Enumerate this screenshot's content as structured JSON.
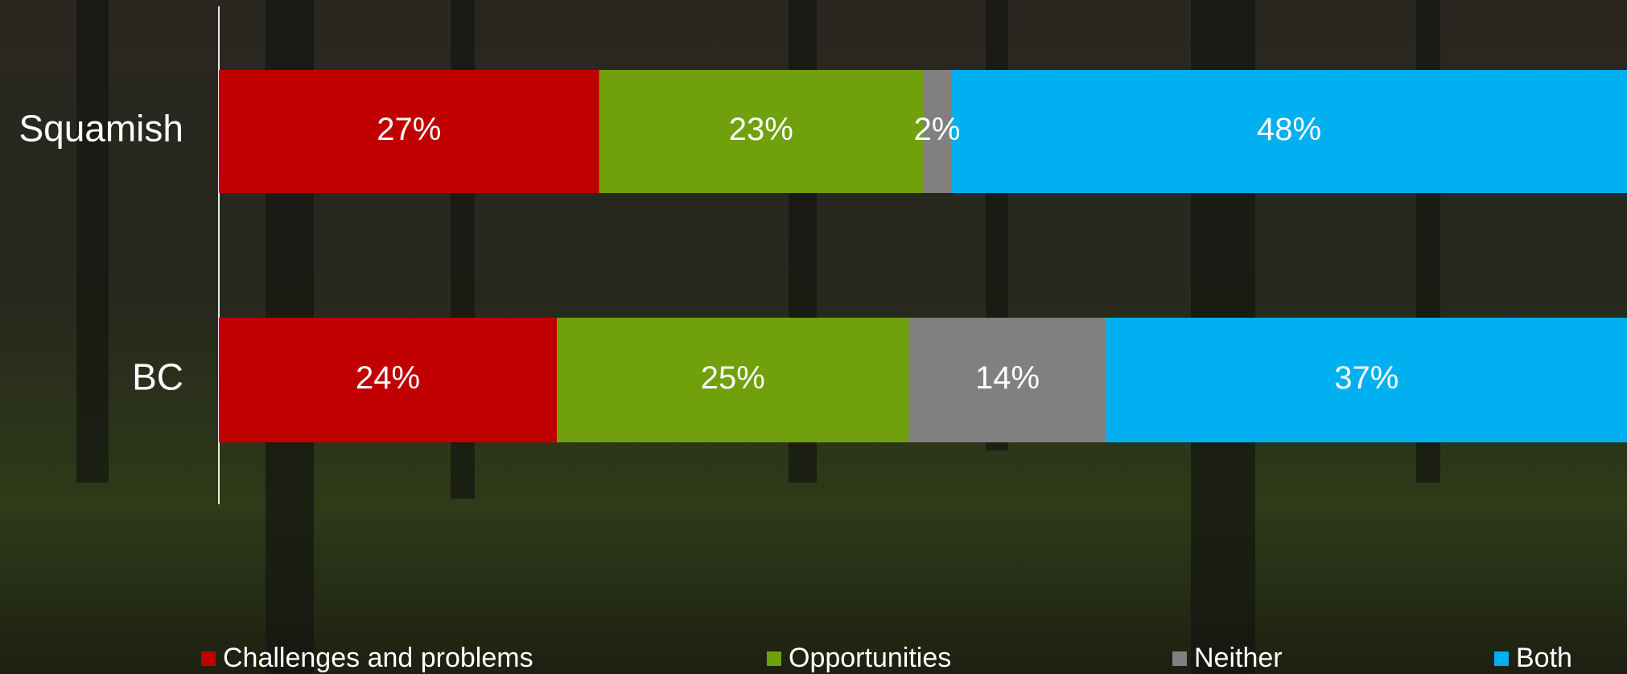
{
  "chart_data": {
    "type": "stacked-bar-horizontal",
    "categories": [
      "Squamish",
      "BC"
    ],
    "series": [
      {
        "name": "Challenges and problems",
        "color": "#c00000",
        "values": [
          27,
          24
        ],
        "value_labels": [
          "27%",
          "24%"
        ]
      },
      {
        "name": "Opportunities",
        "color": "#70a00c",
        "values": [
          23,
          25
        ],
        "value_labels": [
          "23%",
          "25%"
        ]
      },
      {
        "name": "Neither",
        "color": "#808080",
        "values": [
          2,
          14
        ],
        "value_labels": [
          "2%",
          "14%"
        ]
      },
      {
        "name": "Both",
        "color": "#00b0f0",
        "values": [
          48,
          37
        ],
        "value_labels": [
          "48%",
          "37%"
        ]
      }
    ],
    "xlim": [
      0,
      100
    ]
  }
}
